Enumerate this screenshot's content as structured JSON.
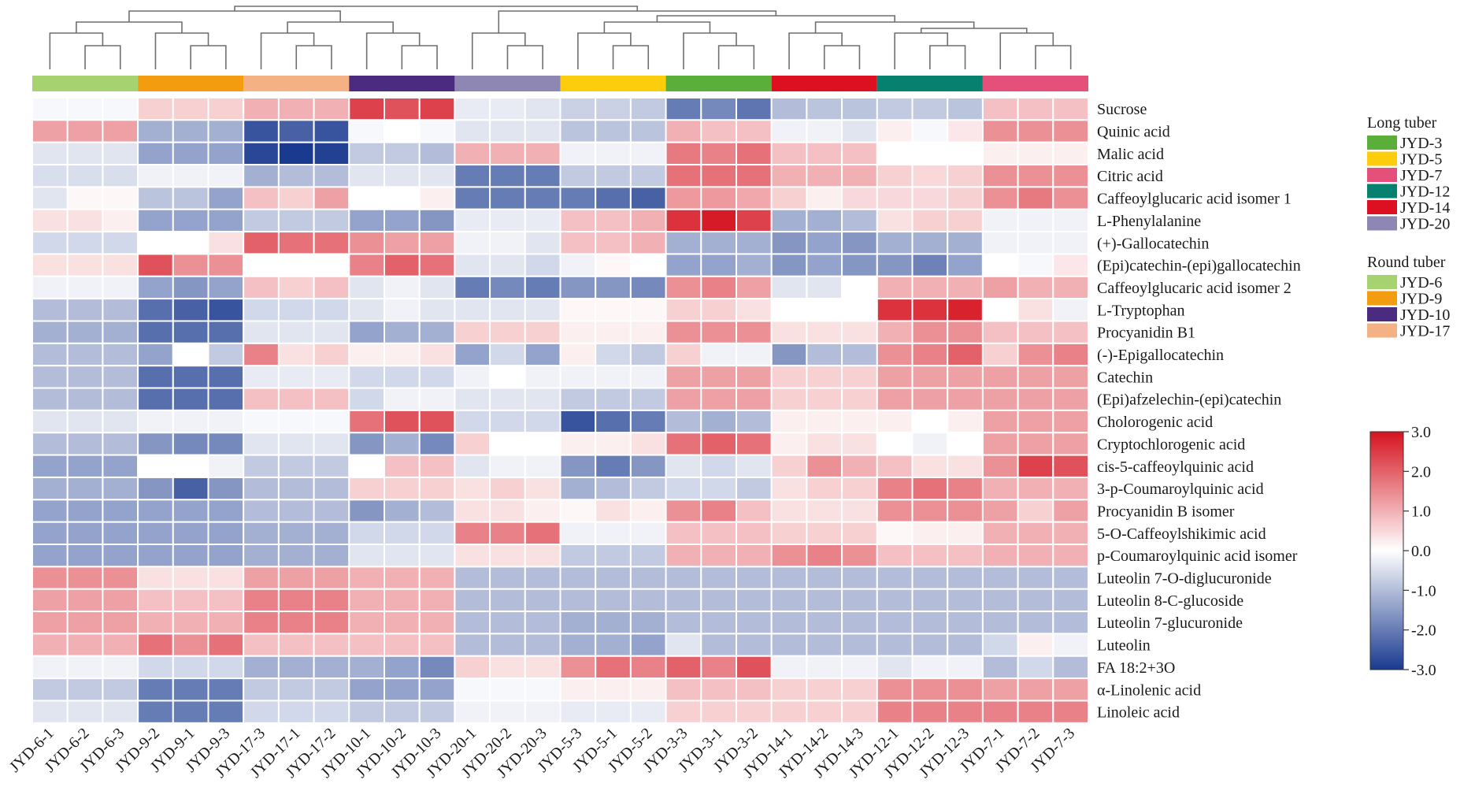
{
  "chart_data": {
    "type": "heatmap",
    "rows": [
      "Sucrose",
      "Quinic acid",
      "Malic acid",
      "Citric acid",
      "Caffeoylglucaric acid isomer 1",
      "L-Phenylalanine",
      "(+)-Gallocatechin",
      "(Epi)catechin-(epi)gallocatechin",
      "Caffeoylglucaric acid isomer 2",
      "L-Tryptophan",
      "Procyanidin B1",
      "(-)-Epigallocatechin",
      "Catechin",
      "(Epi)afzelechin-(epi)catechin",
      "Cholorogenic acid",
      "Cryptochlorogenic acid",
      "cis-5-caffeoylquinic acid",
      "3-p-Coumaroylquinic acid",
      "Procyanidin B isomer",
      "5-O-Caffeoylshikimic acid",
      "p-Coumaroylquinic acid isomer",
      "Luteolin 7-O-diglucuronide",
      "Luteolin 8-C-glucoside",
      "Luteolin 7-glucuronide",
      "Luteolin",
      "FA 18:2+3O",
      "α-Linolenic acid",
      "Linoleic acid"
    ],
    "columns": [
      "JYD-6-1",
      "JYD-6-2",
      "JYD-6-3",
      "JYD-9-2",
      "JYD-9-1",
      "JYD-9-3",
      "JYD-17-3",
      "JYD-17-1",
      "JYD-17-2",
      "JYD-10-1",
      "JYD-10-2",
      "JYD-10-3",
      "JYD-20-1",
      "JYD-20-2",
      "JYD-20-3",
      "JYD-5-3",
      "JYD-5-1",
      "JYD-5-2",
      "JYD-3-3",
      "JYD-3-1",
      "JYD-3-2",
      "JYD-14-1",
      "JYD-14-2",
      "JYD-14-3",
      "JYD-12-1",
      "JYD-12-2",
      "JYD-12-3",
      "JYD-7-1",
      "JYD-7-2",
      "JYD-7-3"
    ],
    "group_colors": [
      "#a6d26f",
      "#f49c0f",
      "#f4b183",
      "#4b2b7f",
      "#8e86b3",
      "#fbcd0c",
      "#5aaf3a",
      "#dc1020",
      "#06806f",
      "#e5507a"
    ],
    "values": [
      [
        -0.1,
        -0.1,
        -0.1,
        0.6,
        0.6,
        0.6,
        1.0,
        1.0,
        1.0,
        2.4,
        2.2,
        2.4,
        -0.3,
        -0.3,
        -0.4,
        -0.7,
        -0.7,
        -0.8,
        -2.0,
        -1.8,
        -2.1,
        -1.0,
        -0.9,
        -0.9,
        -0.8,
        -0.8,
        -0.9,
        0.8,
        0.8,
        0.8
      ],
      [
        1.2,
        1.2,
        1.2,
        -1.2,
        -1.2,
        -1.2,
        -2.6,
        -2.4,
        -2.6,
        -0.1,
        0.0,
        -0.1,
        -0.4,
        -0.4,
        -0.4,
        -0.9,
        -0.9,
        -0.9,
        1.0,
        0.8,
        0.8,
        -0.2,
        -0.2,
        -0.4,
        0.2,
        -0.1,
        0.3,
        1.4,
        1.4,
        1.4
      ],
      [
        -0.4,
        -0.4,
        -0.4,
        -1.4,
        -1.4,
        -1.4,
        -2.8,
        -3.0,
        -2.9,
        -0.8,
        -0.8,
        -1.0,
        1.0,
        1.0,
        1.0,
        -0.2,
        -0.2,
        -0.2,
        1.7,
        1.6,
        1.8,
        0.8,
        0.8,
        0.8,
        0.0,
        0.0,
        0.0,
        0.2,
        0.2,
        0.2
      ],
      [
        -0.5,
        -0.5,
        -0.5,
        -0.2,
        -0.2,
        -0.2,
        -1.2,
        -1.0,
        -1.0,
        -0.4,
        -0.4,
        -0.4,
        -2.0,
        -2.0,
        -2.0,
        -0.8,
        -0.8,
        -0.8,
        1.8,
        1.8,
        1.8,
        1.0,
        1.0,
        1.0,
        0.6,
        0.5,
        0.6,
        1.4,
        1.4,
        1.4
      ],
      [
        -0.4,
        0.1,
        0.1,
        -0.9,
        -0.9,
        -1.4,
        0.8,
        0.6,
        1.2,
        0.0,
        0.0,
        0.2,
        -2.0,
        -2.0,
        -2.0,
        -2.0,
        -2.2,
        -2.4,
        1.3,
        1.3,
        1.1,
        0.6,
        0.2,
        0.5,
        0.5,
        0.5,
        0.6,
        1.4,
        1.7,
        1.4
      ],
      [
        0.4,
        0.4,
        0.2,
        -1.4,
        -1.4,
        -1.4,
        -0.8,
        -0.8,
        -0.8,
        -1.4,
        -1.4,
        -1.6,
        -0.3,
        -0.3,
        -0.3,
        0.8,
        0.8,
        1.0,
        2.6,
        2.9,
        2.4,
        -1.2,
        -1.2,
        -1.0,
        0.4,
        0.6,
        0.6,
        -0.2,
        -0.2,
        -0.2
      ],
      [
        -0.6,
        -0.6,
        -0.6,
        0.0,
        0.0,
        0.4,
        2.0,
        1.8,
        1.8,
        1.4,
        1.2,
        1.2,
        -0.2,
        -0.2,
        -0.4,
        0.8,
        0.8,
        1.0,
        -1.2,
        -1.2,
        -1.2,
        -1.6,
        -1.4,
        -1.6,
        -1.2,
        -1.2,
        -1.2,
        -0.2,
        -0.2,
        -0.2
      ],
      [
        0.4,
        0.4,
        0.4,
        2.2,
        1.4,
        1.4,
        0.0,
        0.0,
        0.0,
        1.6,
        2.0,
        1.8,
        -0.4,
        -0.4,
        -0.6,
        -0.2,
        0.1,
        0.0,
        -1.4,
        -1.4,
        -1.2,
        -1.6,
        -1.4,
        -1.6,
        -1.6,
        -1.9,
        -1.4,
        0.0,
        -0.1,
        0.3
      ],
      [
        -0.2,
        -0.2,
        -0.2,
        -1.4,
        -1.6,
        -1.4,
        0.8,
        0.6,
        0.8,
        -0.4,
        -0.2,
        -0.4,
        -2.0,
        -1.8,
        -2.0,
        -1.6,
        -1.6,
        -1.8,
        1.4,
        1.6,
        1.2,
        -0.4,
        -0.4,
        0.0,
        1.0,
        1.0,
        1.0,
        1.2,
        1.0,
        1.0
      ],
      [
        -1.0,
        -1.0,
        -1.0,
        -2.2,
        -2.4,
        -2.6,
        -0.6,
        -0.6,
        -0.6,
        -0.4,
        -0.2,
        -0.4,
        -0.4,
        -0.4,
        -0.4,
        0.1,
        0.1,
        0.1,
        0.6,
        0.6,
        0.4,
        0.0,
        0.0,
        0.0,
        2.6,
        2.6,
        2.8,
        0.0,
        0.4,
        -0.2
      ],
      [
        -1.2,
        -1.2,
        -1.2,
        -2.2,
        -2.2,
        -2.2,
        -0.4,
        -0.4,
        -0.4,
        -1.4,
        -1.2,
        -1.2,
        0.6,
        0.6,
        0.6,
        0.2,
        0.2,
        0.2,
        1.4,
        1.4,
        1.4,
        0.4,
        0.4,
        0.4,
        1.0,
        1.4,
        1.4,
        0.8,
        0.8,
        0.8
      ],
      [
        -1.0,
        -1.0,
        -1.0,
        -1.4,
        0.0,
        -0.8,
        1.6,
        0.4,
        0.6,
        0.2,
        0.2,
        0.4,
        -1.4,
        -0.6,
        -1.4,
        0.2,
        -0.6,
        -0.8,
        0.6,
        -0.2,
        -0.2,
        -1.6,
        -1.0,
        -1.0,
        1.4,
        1.6,
        2.0,
        0.6,
        1.4,
        1.6
      ],
      [
        -1.0,
        -1.0,
        -1.0,
        -2.2,
        -2.2,
        -2.2,
        -0.3,
        -0.3,
        -0.3,
        -0.6,
        -0.6,
        -0.6,
        -0.2,
        0.0,
        -0.2,
        -0.2,
        -0.2,
        -0.2,
        1.2,
        1.2,
        1.2,
        0.6,
        0.6,
        0.6,
        1.2,
        1.2,
        1.2,
        1.2,
        1.2,
        1.2
      ],
      [
        -1.0,
        -1.0,
        -1.0,
        -2.2,
        -2.2,
        -2.2,
        0.8,
        0.8,
        0.8,
        -0.6,
        -0.2,
        -0.2,
        -0.4,
        -0.4,
        -0.4,
        -0.8,
        -0.8,
        -0.8,
        1.2,
        1.2,
        1.2,
        0.6,
        0.6,
        0.6,
        1.2,
        1.2,
        1.2,
        1.2,
        1.2,
        1.2
      ],
      [
        -0.4,
        -0.4,
        -0.4,
        -0.2,
        -0.2,
        -0.2,
        -0.1,
        -0.1,
        -0.1,
        1.8,
        2.2,
        2.2,
        -0.6,
        -0.6,
        -0.6,
        -2.6,
        -2.2,
        -2.0,
        -1.0,
        -1.2,
        -1.0,
        0.2,
        0.2,
        0.2,
        0.2,
        0.0,
        0.2,
        1.2,
        1.2,
        1.2
      ],
      [
        -1.0,
        -1.0,
        -1.0,
        -1.6,
        -1.8,
        -1.8,
        -0.4,
        -0.4,
        -0.4,
        -1.6,
        -1.2,
        -1.8,
        0.6,
        0.0,
        0.0,
        0.2,
        0.2,
        0.4,
        1.8,
        2.0,
        1.8,
        0.2,
        0.4,
        0.4,
        0.0,
        -0.2,
        0.0,
        1.2,
        1.2,
        1.2
      ],
      [
        -1.4,
        -1.4,
        -1.4,
        0.0,
        0.0,
        -0.2,
        -0.8,
        -0.8,
        -0.8,
        0.0,
        0.8,
        0.8,
        -0.4,
        -0.2,
        -0.2,
        -1.6,
        -2.0,
        -1.6,
        -0.4,
        -0.6,
        -0.4,
        0.6,
        1.4,
        1.0,
        0.8,
        0.4,
        0.4,
        1.4,
        2.4,
        2.2
      ],
      [
        -1.2,
        -1.2,
        -1.2,
        -1.6,
        -2.4,
        -1.6,
        -1.0,
        -1.0,
        -1.0,
        0.6,
        0.6,
        0.6,
        0.4,
        0.6,
        0.4,
        -1.2,
        -1.0,
        -0.8,
        -0.6,
        -0.6,
        -0.8,
        0.4,
        0.6,
        0.6,
        1.6,
        1.8,
        1.6,
        1.0,
        1.0,
        1.0
      ],
      [
        -1.4,
        -1.4,
        -1.4,
        -1.4,
        -1.4,
        -1.4,
        -1.0,
        -1.0,
        -1.0,
        -1.6,
        -1.2,
        -1.0,
        0.4,
        0.4,
        0.2,
        0.1,
        0.4,
        0.2,
        1.4,
        1.6,
        0.8,
        0.4,
        0.4,
        0.4,
        1.4,
        1.4,
        1.4,
        1.2,
        0.6,
        1.2
      ],
      [
        -1.4,
        -1.4,
        -1.4,
        -1.4,
        -1.4,
        -1.4,
        -1.2,
        -1.2,
        -1.2,
        -0.6,
        -0.6,
        -0.6,
        1.6,
        1.6,
        1.8,
        -0.2,
        -0.2,
        -0.2,
        0.8,
        0.8,
        0.8,
        0.6,
        0.6,
        0.6,
        0.1,
        0.2,
        0.2,
        1.0,
        1.0,
        1.0
      ],
      [
        -1.4,
        -1.4,
        -1.4,
        -1.4,
        -1.4,
        -1.4,
        -1.2,
        -1.2,
        -1.2,
        -0.4,
        -0.4,
        -0.4,
        0.4,
        0.4,
        0.4,
        -0.8,
        -0.8,
        -0.8,
        1.0,
        1.0,
        1.0,
        1.4,
        1.6,
        1.4,
        0.8,
        0.8,
        0.8,
        1.0,
        1.0,
        1.0
      ],
      [
        1.4,
        1.4,
        1.4,
        0.4,
        0.4,
        0.4,
        1.2,
        1.2,
        1.2,
        1.0,
        1.0,
        1.0,
        -1.0,
        -1.0,
        -1.0,
        -1.0,
        -1.0,
        -1.0,
        -1.0,
        -1.0,
        -1.0,
        -1.0,
        -1.0,
        -1.0,
        -1.0,
        -1.0,
        -1.0,
        -1.0,
        -1.0,
        -1.0
      ],
      [
        1.2,
        1.2,
        1.2,
        0.8,
        0.8,
        0.8,
        1.6,
        1.6,
        1.6,
        1.0,
        1.0,
        1.0,
        -1.0,
        -1.0,
        -1.0,
        -1.0,
        -1.0,
        -1.0,
        -1.0,
        -1.0,
        -1.0,
        -1.0,
        -1.0,
        -1.0,
        -1.0,
        -1.0,
        -1.0,
        -1.0,
        -1.0,
        -1.0
      ],
      [
        1.2,
        1.2,
        1.2,
        1.0,
        1.0,
        1.0,
        1.6,
        1.6,
        1.6,
        1.0,
        1.0,
        1.0,
        -1.0,
        -1.0,
        -1.0,
        -1.2,
        -1.2,
        -1.2,
        -1.0,
        -1.0,
        -1.0,
        -1.0,
        -1.0,
        -1.0,
        -1.0,
        -1.0,
        -1.0,
        -1.0,
        -1.0,
        -1.0
      ],
      [
        1.0,
        1.0,
        1.0,
        1.8,
        1.4,
        1.8,
        0.8,
        0.8,
        0.8,
        0.8,
        0.8,
        0.8,
        -1.0,
        -1.0,
        -1.0,
        -1.2,
        -1.2,
        -1.4,
        -0.4,
        -1.0,
        -1.0,
        -1.0,
        -1.0,
        -1.0,
        -1.0,
        -1.0,
        -1.0,
        -0.6,
        0.2,
        -0.2
      ],
      [
        -0.2,
        -0.2,
        -0.2,
        -0.6,
        -0.6,
        -0.6,
        -1.2,
        -1.2,
        -1.2,
        -1.2,
        -1.4,
        -1.8,
        0.6,
        0.4,
        0.4,
        1.4,
        1.8,
        1.6,
        2.0,
        1.6,
        2.2,
        -0.2,
        -0.2,
        -0.2,
        -0.4,
        -0.2,
        -0.2,
        -1.0,
        -0.6,
        -1.0
      ],
      [
        -0.8,
        -0.8,
        -0.8,
        -2.0,
        -2.0,
        -2.0,
        -0.8,
        -0.8,
        -0.8,
        -1.4,
        -1.4,
        -1.4,
        -0.1,
        -0.1,
        -0.1,
        0.2,
        0.2,
        0.2,
        0.8,
        0.8,
        0.8,
        0.6,
        0.6,
        0.6,
        1.4,
        1.4,
        1.4,
        1.2,
        1.2,
        1.2
      ],
      [
        -0.4,
        -0.4,
        -0.4,
        -2.0,
        -2.0,
        -2.0,
        -0.6,
        -0.6,
        -0.6,
        -0.8,
        -0.8,
        -0.8,
        -0.2,
        -0.2,
        -0.2,
        -0.3,
        -0.3,
        -0.3,
        0.6,
        0.6,
        0.6,
        0.6,
        0.6,
        0.6,
        1.6,
        1.6,
        1.6,
        1.6,
        1.6,
        1.6
      ]
    ],
    "colorbar": {
      "min": -3.0,
      "max": 3.0,
      "ticks": [
        "3.0",
        "2.0",
        "1.0",
        "0.0",
        "-1.0",
        "-2.0",
        "-3.0"
      ],
      "tick_values": [
        3,
        2,
        1,
        0,
        -1,
        -2,
        -3
      ],
      "colors": [
        "#1a3a8f",
        "#ffffff",
        "#d5131f"
      ]
    },
    "legend": [
      {
        "title": "Long tuber",
        "items": [
          {
            "label": "JYD-3",
            "color": "#5aaf3a"
          },
          {
            "label": "JYD-5",
            "color": "#fbcd0c"
          },
          {
            "label": "JYD-7",
            "color": "#e5507a"
          },
          {
            "label": "JYD-12",
            "color": "#06806f"
          },
          {
            "label": "JYD-14",
            "color": "#dc1020"
          },
          {
            "label": "JYD-20",
            "color": "#8e86b3"
          }
        ]
      },
      {
        "title": "Round tuber",
        "items": [
          {
            "label": "JYD-6",
            "color": "#a6d26f"
          },
          {
            "label": "JYD-9",
            "color": "#f49c0f"
          },
          {
            "label": "JYD-10",
            "color": "#4b2b7f"
          },
          {
            "label": "JYD-17",
            "color": "#f4b183"
          }
        ]
      }
    ]
  }
}
